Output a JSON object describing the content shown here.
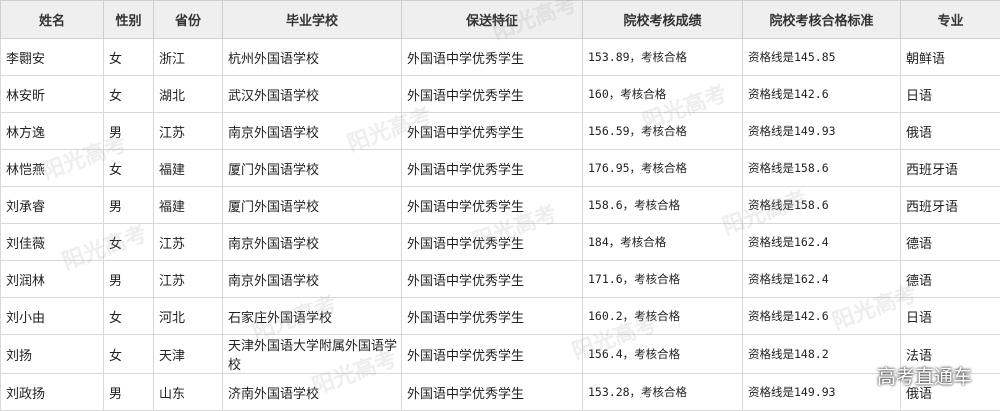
{
  "table": {
    "header": [
      "姓名",
      "性别",
      "省份",
      "毕业学校",
      "保送特征",
      "院校考核成绩",
      "院校考核合格标准",
      "专业"
    ],
    "rows": [
      [
        "李翾安",
        "女",
        "浙江",
        "杭州外国语学校",
        "外国语中学优秀学生",
        "153.89，考核合格",
        "资格线是145.85",
        "朝鲜语"
      ],
      [
        "林安昕",
        "女",
        "湖北",
        "武汉外国语学校",
        "外国语中学优秀学生",
        "160，考核合格",
        "资格线是142.6",
        "日语"
      ],
      [
        "林方逸",
        "男",
        "江苏",
        "南京外国语学校",
        "外国语中学优秀学生",
        "156.59，考核合格",
        "资格线是149.93",
        "俄语"
      ],
      [
        "林恺燕",
        "女",
        "福建",
        "厦门外国语学校",
        "外国语中学优秀学生",
        "176.95，考核合格",
        "资格线是158.6",
        "西班牙语"
      ],
      [
        "刘承睿",
        "男",
        "福建",
        "厦门外国语学校",
        "外国语中学优秀学生",
        "158.6，考核合格",
        "资格线是158.6",
        "西班牙语"
      ],
      [
        "刘佳薇",
        "女",
        "江苏",
        "南京外国语学校",
        "外国语中学优秀学生",
        "184，考核合格",
        "资格线是162.4",
        "德语"
      ],
      [
        "刘润林",
        "男",
        "江苏",
        "南京外国语学校",
        "外国语中学优秀学生",
        "171.6，考核合格",
        "资格线是162.4",
        "德语"
      ],
      [
        "刘小由",
        "女",
        "河北",
        "石家庄外国语学校",
        "外国语中学优秀学生",
        "160.2，考核合格",
        "资格线是142.6",
        "日语"
      ],
      [
        "刘扬",
        "女",
        "天津",
        "天津外国语大学附属外国语学校",
        "外国语中学优秀学生",
        "156.4，考核合格",
        "资格线是148.2",
        "法语"
      ],
      [
        "刘政扬",
        "男",
        "山东",
        "济南外国语学校",
        "外国语中学优秀学生",
        "153.28，考核合格",
        "资格线是149.93",
        "俄语"
      ]
    ]
  },
  "watermark": "阳光高考",
  "overlay": "高考直通车"
}
